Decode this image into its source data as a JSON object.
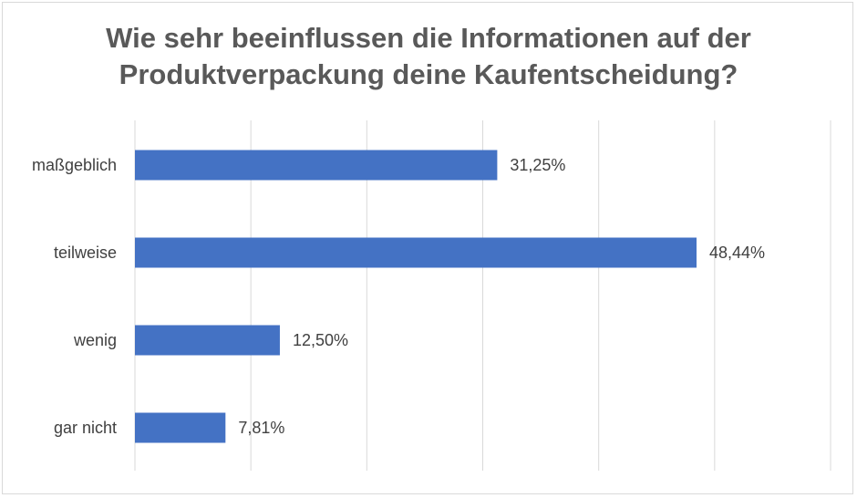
{
  "chart_data": {
    "type": "bar",
    "orientation": "horizontal",
    "title_lines": [
      "Wie sehr beeinflussen die Informationen auf der",
      "Produktverpackung deine Kaufentscheidung?"
    ],
    "categories": [
      "maßgeblich",
      "teilweise",
      "wenig",
      "gar nicht"
    ],
    "values": [
      31.25,
      48.44,
      12.5,
      7.81
    ],
    "data_labels": [
      "31,25%",
      "48,44%",
      "12,50%",
      "7,81%"
    ],
    "xlim": [
      0,
      60
    ],
    "x_gridlines": [
      0,
      10,
      20,
      30,
      40,
      50,
      60
    ],
    "grid": true,
    "legend": "none",
    "colors": {
      "bar": "#4472c4",
      "grid": "#d9d9d9",
      "text": "#404040",
      "title": "#595959"
    }
  }
}
